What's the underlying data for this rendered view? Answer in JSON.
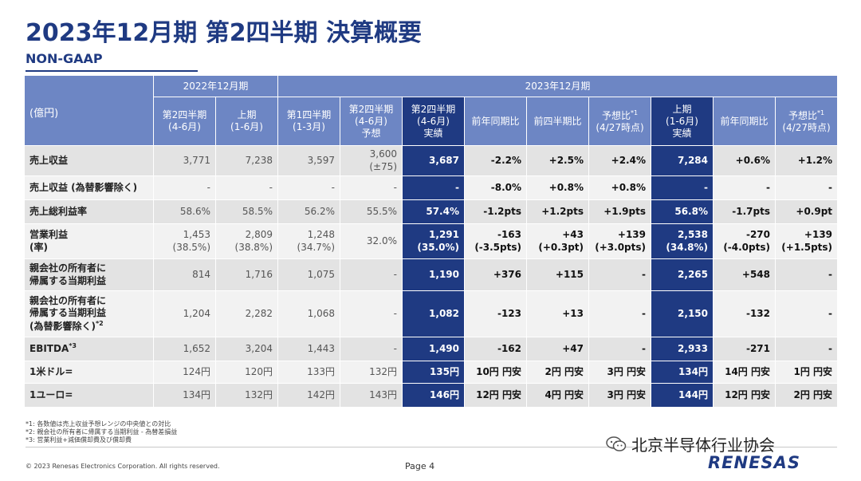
{
  "title": "2023年12月期 第2四半期 決算概要",
  "subtitle": "NON-GAAP",
  "table": {
    "unit_label": "(億円)",
    "group_2022": "2022年12月期",
    "group_2023": "2023年12月期",
    "columns": [
      [
        "第2四半期",
        "(4-6月)"
      ],
      [
        "上期",
        "(1-6月)"
      ],
      [
        "第1四半期",
        "(1-3月)"
      ],
      [
        "第2四半期",
        "(4-6月)",
        "予想"
      ],
      [
        "第2四半期",
        "(4-6月)",
        "実績"
      ],
      [
        "前年同期比"
      ],
      [
        "前四半期比"
      ],
      [
        "予想比*1",
        "(4/27時点)"
      ],
      [
        "上期",
        "(1-6月)",
        "実績"
      ],
      [
        "前年同期比"
      ],
      [
        "予想比*1",
        "(4/27時点)"
      ]
    ],
    "rows": [
      {
        "label": [
          "売上収益"
        ],
        "cells": [
          [
            "3,771"
          ],
          [
            "7,238"
          ],
          [
            "3,597"
          ],
          [
            "3,600",
            "(±75)"
          ],
          [
            "3,687"
          ],
          [
            "-2.2%"
          ],
          [
            "+2.5%"
          ],
          [
            "+2.4%"
          ],
          [
            "7,284"
          ],
          [
            "+0.6%"
          ],
          [
            "+1.2%"
          ]
        ]
      },
      {
        "label": [
          "売上収益 (為替影響除く)"
        ],
        "cells": [
          [
            "-"
          ],
          [
            "-"
          ],
          [
            "-"
          ],
          [
            "-"
          ],
          [
            "-"
          ],
          [
            "-8.0%"
          ],
          [
            "+0.8%"
          ],
          [
            "+0.8%"
          ],
          [
            "-"
          ],
          [
            "-"
          ],
          [
            "-"
          ]
        ]
      },
      {
        "label": [
          "売上総利益率"
        ],
        "cells": [
          [
            "58.6%"
          ],
          [
            "58.5%"
          ],
          [
            "56.2%"
          ],
          [
            "55.5%"
          ],
          [
            "57.4%"
          ],
          [
            "-1.2pts"
          ],
          [
            "+1.2pts"
          ],
          [
            "+1.9pts"
          ],
          [
            "56.8%"
          ],
          [
            "-1.7pts"
          ],
          [
            "+0.9pt"
          ]
        ]
      },
      {
        "label": [
          "営業利益",
          "(率)"
        ],
        "cells": [
          [
            "1,453",
            "(38.5%)"
          ],
          [
            "2,809",
            "(38.8%)"
          ],
          [
            "1,248",
            "(34.7%)"
          ],
          [
            "32.0%"
          ],
          [
            "1,291",
            "(35.0%)"
          ],
          [
            "-163",
            "(-3.5pts)"
          ],
          [
            "+43",
            "(+0.3pt)"
          ],
          [
            "+139",
            "(+3.0pts)"
          ],
          [
            "2,538",
            "(34.8%)"
          ],
          [
            "-270",
            "(-4.0pts)"
          ],
          [
            "+139",
            "(+1.5pts)"
          ]
        ]
      },
      {
        "label": [
          "親会社の所有者に",
          "帰属する当期利益"
        ],
        "cells": [
          [
            "814"
          ],
          [
            "1,716"
          ],
          [
            "1,075"
          ],
          [
            "-"
          ],
          [
            "1,190"
          ],
          [
            "+376"
          ],
          [
            "+115"
          ],
          [
            "-"
          ],
          [
            "2,265"
          ],
          [
            "+548"
          ],
          [
            "-"
          ]
        ]
      },
      {
        "label": [
          "親会社の所有者に",
          "帰属する当期利益",
          "(為替影響除く)*2"
        ],
        "cells": [
          [
            "1,204"
          ],
          [
            "2,282"
          ],
          [
            "1,068"
          ],
          [
            "-"
          ],
          [
            "1,082"
          ],
          [
            "-123"
          ],
          [
            "+13"
          ],
          [
            "-"
          ],
          [
            "2,150"
          ],
          [
            "-132"
          ],
          [
            "-"
          ]
        ]
      },
      {
        "label": [
          "EBITDA*3"
        ],
        "cells": [
          [
            "1,652"
          ],
          [
            "3,204"
          ],
          [
            "1,443"
          ],
          [
            "-"
          ],
          [
            "1,490"
          ],
          [
            "-162"
          ],
          [
            "+47"
          ],
          [
            "-"
          ],
          [
            "2,933"
          ],
          [
            "-271"
          ],
          [
            "-"
          ]
        ]
      },
      {
        "label": [
          "1米ドル="
        ],
        "cells": [
          [
            "124円"
          ],
          [
            "120円"
          ],
          [
            "133円"
          ],
          [
            "132円"
          ],
          [
            "135円"
          ],
          [
            "10円 円安"
          ],
          [
            "2円 円安"
          ],
          [
            "3円 円安"
          ],
          [
            "134円"
          ],
          [
            "14円 円安"
          ],
          [
            "1円 円安"
          ]
        ]
      },
      {
        "label": [
          "1ユーロ="
        ],
        "cells": [
          [
            "134円"
          ],
          [
            "132円"
          ],
          [
            "142円"
          ],
          [
            "143円"
          ],
          [
            "146円"
          ],
          [
            "12円 円安"
          ],
          [
            "4円 円安"
          ],
          [
            "3円 円安"
          ],
          [
            "144円"
          ],
          [
            "12円 円安"
          ],
          [
            "2円 円安"
          ]
        ]
      }
    ]
  },
  "footnotes": [
    "*1: 各数値は売上収益予想レンジの中央値との対比",
    "*2: 親会社の所有者に帰属する当期利益 - 為替差損益",
    "*3: 営業利益+減価償却費及び償却費"
  ],
  "footer": {
    "copyright": "© 2023 Renesas Electronics Corporation. All rights reserved.",
    "page": "Page 4",
    "watermark": "北京半导体行业协会",
    "logo": "RENESAS"
  },
  "colors": {
    "navy": "#1f3a82",
    "header_blue": "#6d86c4",
    "row_gray": "#e3e3e3"
  }
}
